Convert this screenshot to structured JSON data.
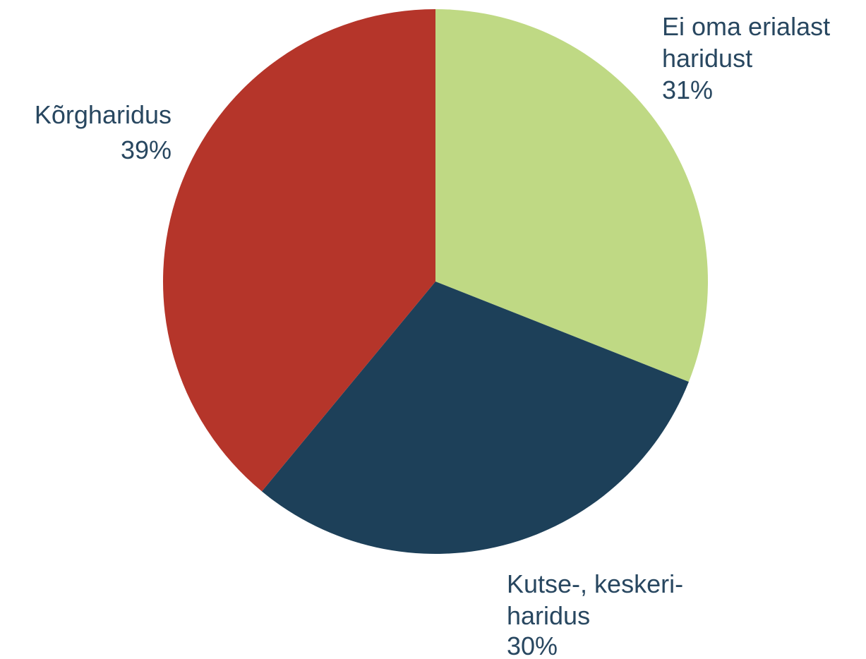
{
  "chart_data": {
    "type": "pie",
    "categories": [
      "Ei oma erialast\nharidust",
      "Kutse-, keskeri-\nharidus",
      "Kõrgharidus"
    ],
    "values": [
      31,
      30,
      39
    ],
    "value_labels": [
      "31%",
      "30%",
      "39%"
    ],
    "colors": [
      "#bfd984",
      "#1d4059",
      "#b5352a"
    ]
  }
}
